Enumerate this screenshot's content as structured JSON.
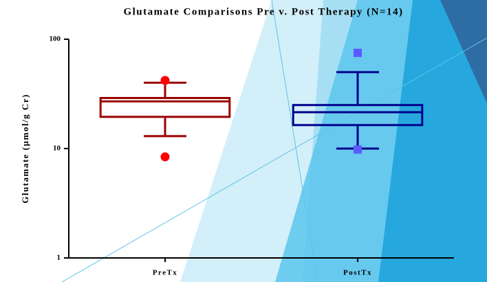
{
  "chart_data": {
    "type": "box",
    "title": "Glutamate Comparisons Pre v. Post Therapy (N=14)",
    "y_label": "Glutamate (µmol/g Cr)",
    "categories": [
      "PreTx",
      "PostTx"
    ],
    "boxes": [
      {
        "whisker_low": 13,
        "q1": 19.5,
        "median": 27,
        "q3": 29,
        "whisker_high": 40,
        "outliers": [
          42,
          8.4
        ],
        "color": "#9b0000",
        "outlier_color": "#ff0000",
        "marker": "circle"
      },
      {
        "whisker_low": 10,
        "q1": 16.4,
        "median": 21.5,
        "q3": 25,
        "whisker_high": 50,
        "outliers": [
          75,
          9.8
        ],
        "color": "#00008b",
        "outlier_color": "#5a5aff",
        "marker": "square"
      }
    ],
    "log_scale": true,
    "ylim": [
      1,
      100
    ],
    "yticks": [
      1,
      10,
      100
    ],
    "grid": false
  }
}
